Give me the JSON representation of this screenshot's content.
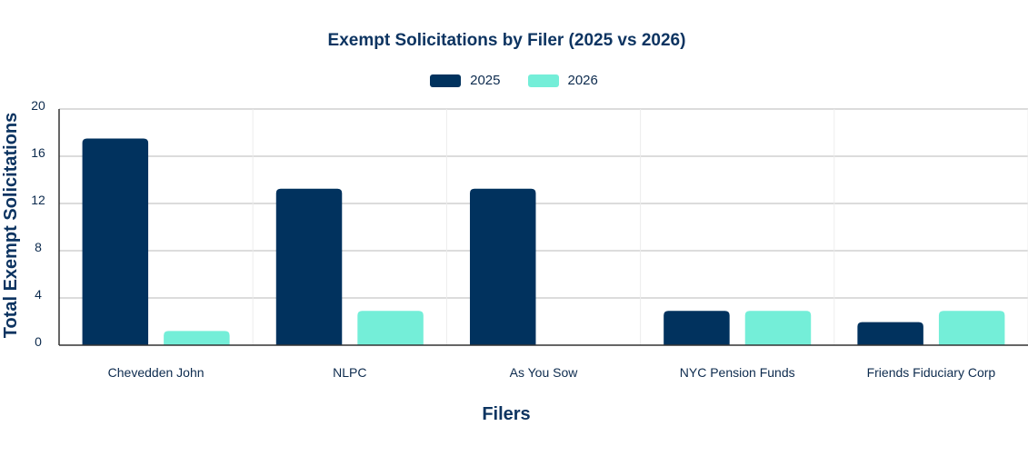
{
  "colors": {
    "s2025": "#01325e",
    "s2026": "#74eed8",
    "grid": "#b8b8b8",
    "axis": "#333333"
  },
  "chart_data": {
    "type": "bar",
    "title": "Exempt Solicitations by Filer (2025 vs 2026)",
    "xlabel": "Filers",
    "ylabel": "Total Exempt Solicitations",
    "categories": [
      "Chevedden John",
      "NLPC",
      "As You Sow",
      "NYC Pension Funds",
      "Friends Fiduciary Corp"
    ],
    "series": [
      {
        "name": "2025",
        "values": [
          17.5,
          13.25,
          13.25,
          2.9,
          1.95
        ]
      },
      {
        "name": "2026",
        "values": [
          1.2,
          2.9,
          0,
          2.9,
          2.9
        ]
      }
    ],
    "ylim": [
      0,
      20
    ],
    "yticks": [
      "0",
      "4",
      "8",
      "12",
      "16",
      "20"
    ],
    "grid": true,
    "legend_position": "top-center"
  }
}
